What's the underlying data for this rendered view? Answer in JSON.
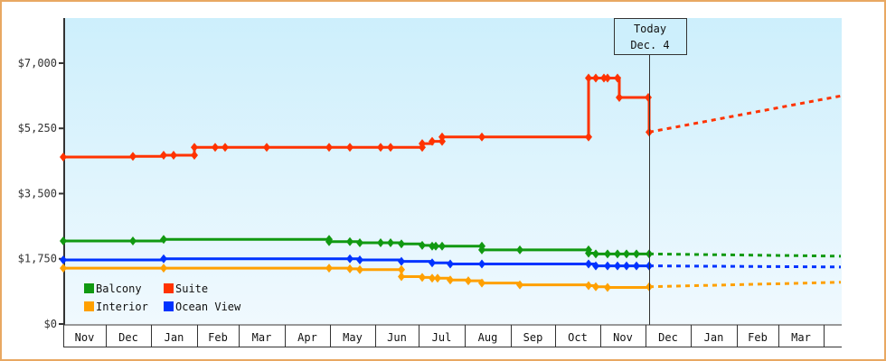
{
  "chart_data": {
    "type": "line",
    "title": "",
    "xlabel": "",
    "ylabel": "",
    "ylim": [
      0,
      8000
    ],
    "y_ticks": [
      "$0",
      "$1,750",
      "$3,500",
      "$5,250",
      "$7,000"
    ],
    "x_ticks": [
      "Nov",
      "Dec",
      "Jan",
      "Feb",
      "Mar",
      "Apr",
      "May",
      "Jun",
      "Jul",
      "Aug",
      "Sep",
      "Oct",
      "Nov",
      "Dec",
      "Jan",
      "Feb",
      "Mar",
      ""
    ],
    "today_marker": {
      "line1": "Today",
      "line2": "Dec. 4"
    },
    "legend": [
      {
        "name": "Balcony",
        "color": "#119911"
      },
      {
        "name": "Suite",
        "color": "#ff3300"
      },
      {
        "name": "Interior",
        "color": "#ffa000"
      },
      {
        "name": "Ocean View",
        "color": "#0033ff"
      }
    ],
    "series": [
      {
        "name": "Suite",
        "color": "#ff3300",
        "points": [
          [
            70,
            4480
          ],
          [
            147,
            4500
          ],
          [
            181,
            4530
          ],
          [
            192,
            4530
          ],
          [
            215,
            4530
          ],
          [
            215,
            4740
          ],
          [
            238,
            4740
          ],
          [
            249,
            4740
          ],
          [
            295,
            4740
          ],
          [
            364,
            4740
          ],
          [
            387,
            4740
          ],
          [
            421,
            4740
          ],
          [
            432,
            4740
          ],
          [
            467,
            4740
          ],
          [
            467,
            4840
          ],
          [
            478,
            4900
          ],
          [
            489,
            4900
          ],
          [
            489,
            5020
          ],
          [
            533,
            5020
          ],
          [
            651,
            5020
          ],
          [
            651,
            6600
          ],
          [
            659,
            6600
          ],
          [
            668,
            6600
          ],
          [
            672,
            6600
          ],
          [
            683,
            6600
          ],
          [
            685,
            6080
          ],
          [
            717,
            6080
          ],
          [
            718,
            5150
          ]
        ],
        "forecast": [
          [
            718,
            5150
          ],
          [
            930,
            6120
          ]
        ]
      },
      {
        "name": "Balcony",
        "color": "#119911",
        "points": [
          [
            70,
            2228
          ],
          [
            147,
            2228
          ],
          [
            181,
            2270
          ],
          [
            364,
            2270
          ],
          [
            364,
            2210
          ],
          [
            387,
            2210
          ],
          [
            398,
            2180
          ],
          [
            421,
            2180
          ],
          [
            432,
            2180
          ],
          [
            444,
            2150
          ],
          [
            467,
            2110
          ],
          [
            478,
            2090
          ],
          [
            482,
            2090
          ],
          [
            489,
            2090
          ],
          [
            533,
            2090
          ],
          [
            533,
            1990
          ],
          [
            575,
            1990
          ],
          [
            651,
            1990
          ],
          [
            651,
            1900
          ],
          [
            659,
            1880
          ],
          [
            672,
            1880
          ],
          [
            683,
            1880
          ],
          [
            693,
            1880
          ],
          [
            704,
            1880
          ],
          [
            718,
            1880
          ]
        ],
        "forecast": [
          [
            718,
            1880
          ],
          [
            930,
            1820
          ]
        ]
      },
      {
        "name": "Ocean View",
        "color": "#0033ff",
        "points": [
          [
            70,
            1720
          ],
          [
            181,
            1750
          ],
          [
            387,
            1750
          ],
          [
            398,
            1720
          ],
          [
            444,
            1680
          ],
          [
            478,
            1640
          ],
          [
            498,
            1610
          ],
          [
            533,
            1610
          ],
          [
            651,
            1610
          ],
          [
            659,
            1560
          ],
          [
            672,
            1560
          ],
          [
            683,
            1560
          ],
          [
            693,
            1560
          ],
          [
            704,
            1560
          ],
          [
            718,
            1560
          ]
        ],
        "forecast": [
          [
            718,
            1560
          ],
          [
            930,
            1530
          ]
        ]
      },
      {
        "name": "Interior",
        "color": "#ffa000",
        "points": [
          [
            70,
            1500
          ],
          [
            181,
            1500
          ],
          [
            364,
            1500
          ],
          [
            387,
            1480
          ],
          [
            398,
            1460
          ],
          [
            444,
            1460
          ],
          [
            444,
            1270
          ],
          [
            467,
            1250
          ],
          [
            478,
            1230
          ],
          [
            484,
            1230
          ],
          [
            498,
            1180
          ],
          [
            518,
            1160
          ],
          [
            533,
            1100
          ],
          [
            575,
            1050
          ],
          [
            651,
            1030
          ],
          [
            659,
            1000
          ],
          [
            672,
            980
          ],
          [
            718,
            1000
          ]
        ],
        "forecast": [
          [
            718,
            1000
          ],
          [
            930,
            1120
          ]
        ]
      }
    ]
  }
}
